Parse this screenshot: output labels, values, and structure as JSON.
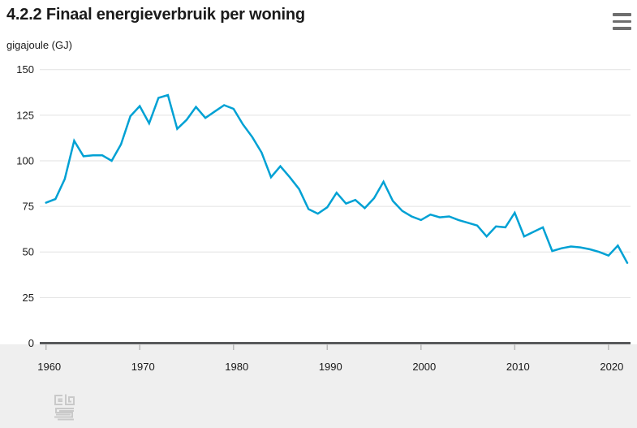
{
  "header": {
    "title": "4.2.2 Finaal energieverbruik per woning",
    "subtitle": "gigajoule (GJ)"
  },
  "menu_button": {
    "icon": "hamburger-menu-icon",
    "label": "Chart context menu"
  },
  "chart_data": {
    "type": "line",
    "title": "4.2.2 Finaal energieverbruik per woning",
    "ylabel": "gigajoule (GJ)",
    "x": [
      1960,
      1961,
      1962,
      1963,
      1964,
      1965,
      1966,
      1967,
      1968,
      1969,
      1970,
      1971,
      1972,
      1973,
      1974,
      1975,
      1976,
      1977,
      1978,
      1979,
      1980,
      1981,
      1982,
      1983,
      1984,
      1985,
      1986,
      1987,
      1988,
      1989,
      1990,
      1991,
      1992,
      1993,
      1994,
      1995,
      1996,
      1997,
      1998,
      1999,
      2000,
      2001,
      2002,
      2003,
      2004,
      2005,
      2006,
      2007,
      2008,
      2009,
      2010,
      2011,
      2012,
      2013,
      2014,
      2015,
      2016,
      2017,
      2018,
      2019,
      2020,
      2021,
      2022
    ],
    "series": [
      {
        "name": "Finaal energieverbruik per woning (GJ)",
        "values": [
          77,
          79,
          90,
          111,
          102.5,
          103,
          103,
          100,
          109,
          124.5,
          130,
          120.5,
          134.5,
          136,
          117.5,
          122.5,
          129.5,
          123.5,
          127,
          130.5,
          128.5,
          120,
          113,
          104.5,
          91,
          97,
          91,
          84.5,
          73.5,
          71,
          74.5,
          82.5,
          76.5,
          78.5,
          74,
          79.5,
          88.5,
          78,
          72.5,
          69.5,
          67.5,
          70.5,
          69,
          69.5,
          67.5,
          66,
          64.5,
          58.5,
          64,
          63.5,
          71.5,
          58.5,
          61,
          63.5,
          50.5,
          52,
          53,
          52.5,
          51.5,
          50,
          48,
          53.5,
          44
        ]
      }
    ],
    "ylim": [
      0,
      150
    ],
    "yticks": [
      0,
      25,
      50,
      75,
      100,
      125,
      150
    ],
    "xticks": [
      1960,
      1970,
      1980,
      1990,
      2000,
      2010,
      2020
    ],
    "grid": "horizontal",
    "legend_position": "none",
    "line_color": "#00a1d4",
    "axis_color": "#58595b",
    "grid_color": "#e2e2e2",
    "tick_color": "#b9b9b9",
    "label_color": "#1a1a1a",
    "footer_band_color": "#efefef"
  },
  "footer": {
    "logo": "cbs-logo"
  }
}
